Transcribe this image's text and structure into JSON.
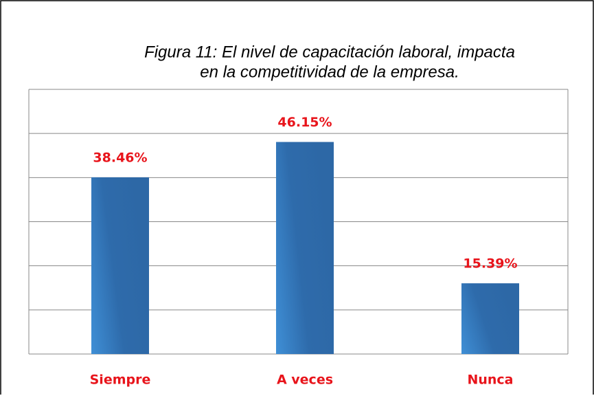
{
  "chart_data": {
    "type": "bar",
    "title": "Figura 11: El nivel de capacitación laboral, impacta",
    "subtitle": "en la competitividad de la empresa.",
    "categories": [
      "Siempre",
      "A veces",
      "Nunca"
    ],
    "values": [
      38.46,
      46.15,
      15.39
    ],
    "value_labels": [
      "38.46%",
      "46.15%",
      "15.39%"
    ],
    "color": "#2e6bab",
    "ylim": [
      0,
      57.6
    ],
    "yticks": [
      0,
      9.6,
      19.2,
      28.8,
      38.4,
      48,
      57.6
    ],
    "grid": true
  }
}
